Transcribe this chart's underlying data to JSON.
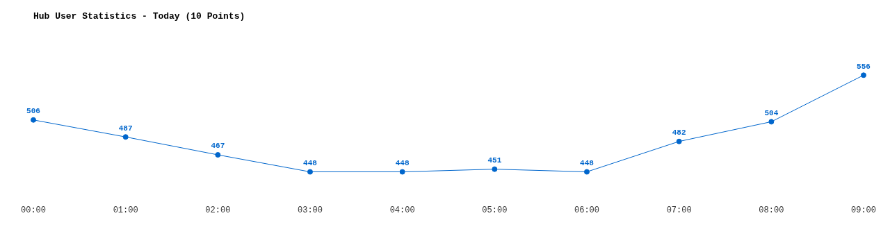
{
  "chart_data": {
    "type": "line",
    "title": "Hub User Statistics - Today (10 Points)",
    "categories": [
      "00:00",
      "01:00",
      "02:00",
      "03:00",
      "04:00",
      "05:00",
      "06:00",
      "07:00",
      "08:00",
      "09:00"
    ],
    "series": [
      {
        "color": "#0066cc",
        "values": [
          506,
          487,
          467,
          448,
          448,
          451,
          448,
          482,
          504,
          556
        ]
      }
    ],
    "data_labels": true,
    "grid": false,
    "legend": false,
    "marker": "circle",
    "line_style": "solid"
  }
}
